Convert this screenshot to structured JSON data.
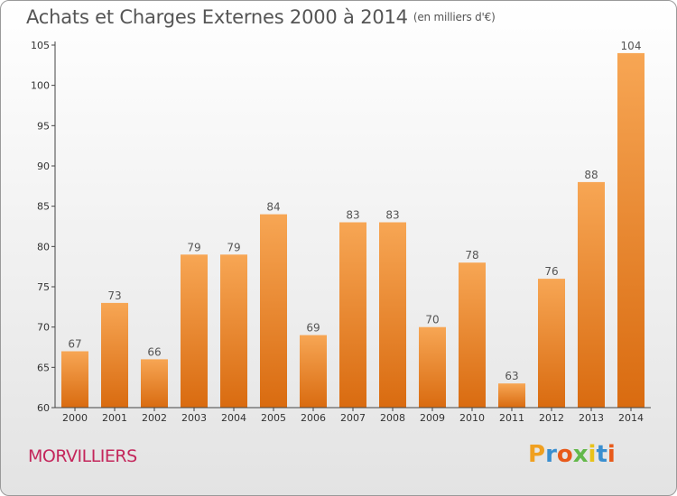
{
  "title": "Achats et Charges Externes 2000 à 2014",
  "subtitle": "(en milliers d'€)",
  "location": "MORVILLIERS",
  "logo": "Proxiti",
  "colors": {
    "bar_top": "#f7a654",
    "bar_bottom": "#d96b10",
    "axis": "#444444",
    "text": "#555555",
    "location": "#c4265b"
  },
  "chart_data": {
    "type": "bar",
    "categories": [
      "2000",
      "2001",
      "2002",
      "2003",
      "2004",
      "2005",
      "2006",
      "2007",
      "2008",
      "2009",
      "2010",
      "2011",
      "2012",
      "2013",
      "2014"
    ],
    "values": [
      67,
      73,
      66,
      79,
      79,
      84,
      69,
      83,
      83,
      70,
      78,
      63,
      76,
      88,
      104
    ],
    "ylim": [
      60,
      105
    ],
    "yticks": [
      60,
      65,
      70,
      75,
      80,
      85,
      90,
      95,
      100,
      105
    ],
    "title": "Achats et Charges Externes 2000 à 2014",
    "subtitle": "(en milliers d'€)",
    "xlabel": "",
    "ylabel": "",
    "grid": false,
    "data_labels": true
  }
}
